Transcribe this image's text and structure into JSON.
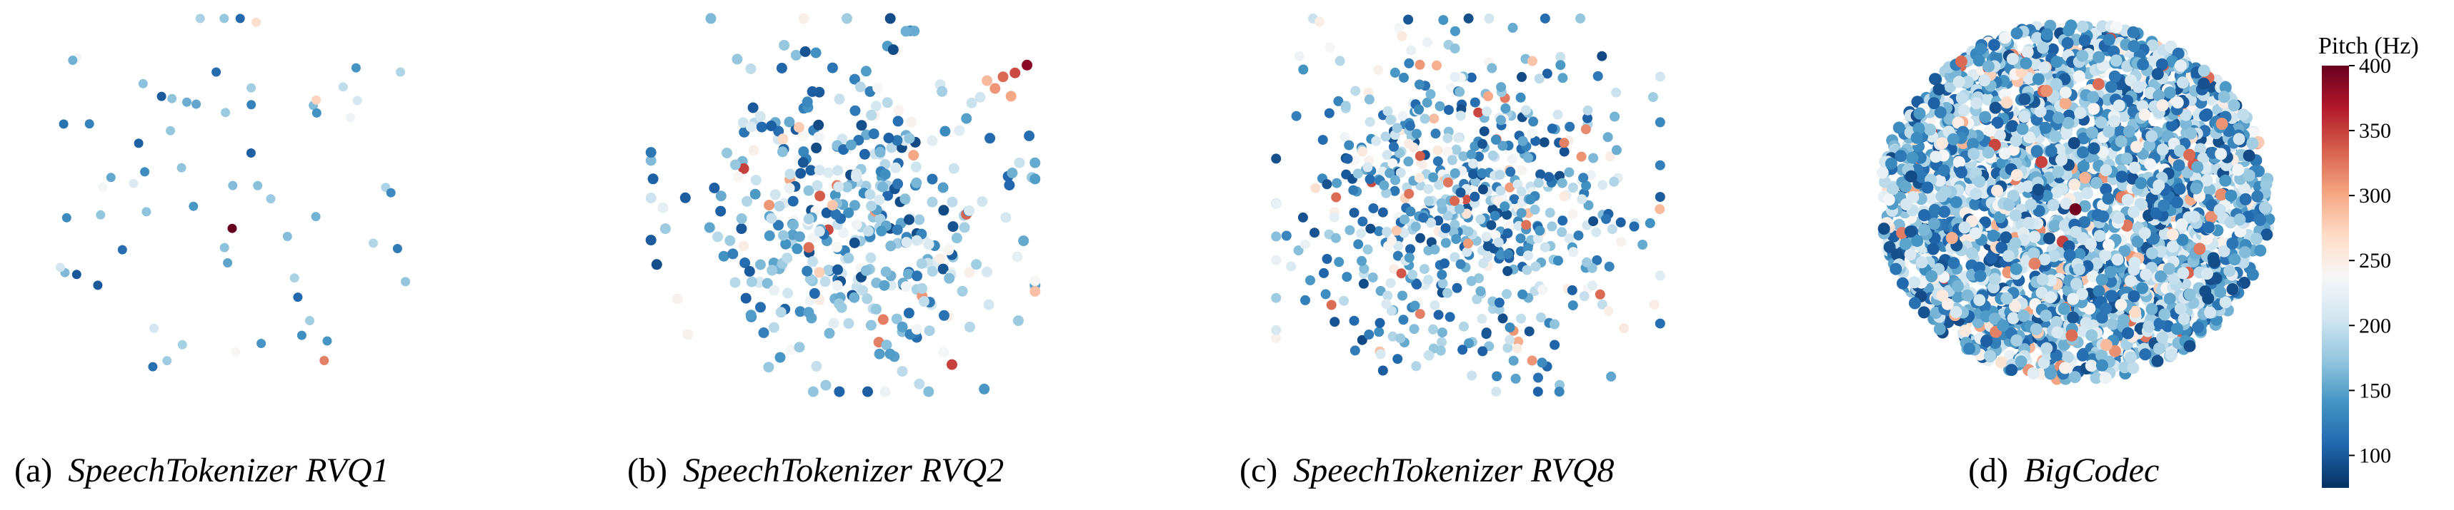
{
  "chart_data": {
    "type": "scatter",
    "description_free": true,
    "colorbar": {
      "title": "Pitch (Hz)",
      "range": [
        75,
        400
      ],
      "ticks": [
        100,
        150,
        200,
        250,
        300,
        350,
        400
      ],
      "colormap": [
        "#053061",
        "#2166ac",
        "#4393c3",
        "#92c5de",
        "#d1e5f0",
        "#f7f7f7",
        "#fddbc7",
        "#f4a582",
        "#d6604d",
        "#b2182b",
        "#67001f"
      ]
    },
    "panels": [
      {
        "label": "(a)",
        "name": "SpeechTokenizer RVQ1",
        "point_count": 60,
        "seed": 11,
        "shape": "sparse",
        "points": [
          {
            "x": 0.42,
            "y": 0.02,
            "pitch": 185
          },
          {
            "x": 0.48,
            "y": 0.02,
            "pitch": 175
          },
          {
            "x": 0.52,
            "y": 0.02,
            "pitch": 110
          },
          {
            "x": 0.56,
            "y": 0.03,
            "pitch": 265
          },
          {
            "x": 0.5,
            "y": 0.56,
            "pitch": 400
          },
          {
            "x": 0.73,
            "y": 0.9,
            "pitch": 320
          },
          {
            "x": 0.71,
            "y": 0.23,
            "pitch": 275
          }
        ]
      },
      {
        "label": "(b)",
        "name": "SpeechTokenizer RVQ2",
        "point_count": 420,
        "seed": 23,
        "shape": "blob",
        "points": [
          {
            "x": 0.96,
            "y": 0.14,
            "pitch": 385
          },
          {
            "x": 0.93,
            "y": 0.16,
            "pitch": 345
          },
          {
            "x": 0.9,
            "y": 0.17,
            "pitch": 330
          },
          {
            "x": 0.88,
            "y": 0.2,
            "pitch": 310
          },
          {
            "x": 0.92,
            "y": 0.22,
            "pitch": 300
          },
          {
            "x": 0.86,
            "y": 0.18,
            "pitch": 290
          },
          {
            "x": 0.39,
            "y": 0.3,
            "pitch": 280
          },
          {
            "x": 0.35,
            "y": 0.33,
            "pitch": 270
          }
        ]
      },
      {
        "label": "(c)",
        "name": "SpeechTokenizer RVQ8",
        "point_count": 640,
        "seed": 37,
        "shape": "blob",
        "points": [
          {
            "x": 0.83,
            "y": 0.73,
            "pitch": 330
          },
          {
            "x": 0.38,
            "y": 0.78,
            "pitch": 320
          },
          {
            "x": 0.66,
            "y": 0.9,
            "pitch": 310
          },
          {
            "x": 0.74,
            "y": 0.34,
            "pitch": 320
          },
          {
            "x": 0.17,
            "y": 0.48,
            "pitch": 330
          },
          {
            "x": 0.55,
            "y": 0.22,
            "pitch": 300
          }
        ]
      },
      {
        "label": "(d)",
        "name": "BigCodec",
        "point_count": 2600,
        "seed": 53,
        "shape": "dense",
        "points": [
          {
            "x": 0.5,
            "y": 0.52,
            "pitch": 395
          },
          {
            "x": 0.22,
            "y": 0.14,
            "pitch": 330
          },
          {
            "x": 0.78,
            "y": 0.38,
            "pitch": 330
          },
          {
            "x": 0.4,
            "y": 0.66,
            "pitch": 320
          },
          {
            "x": 0.86,
            "y": 0.3,
            "pitch": 310
          }
        ]
      }
    ]
  }
}
